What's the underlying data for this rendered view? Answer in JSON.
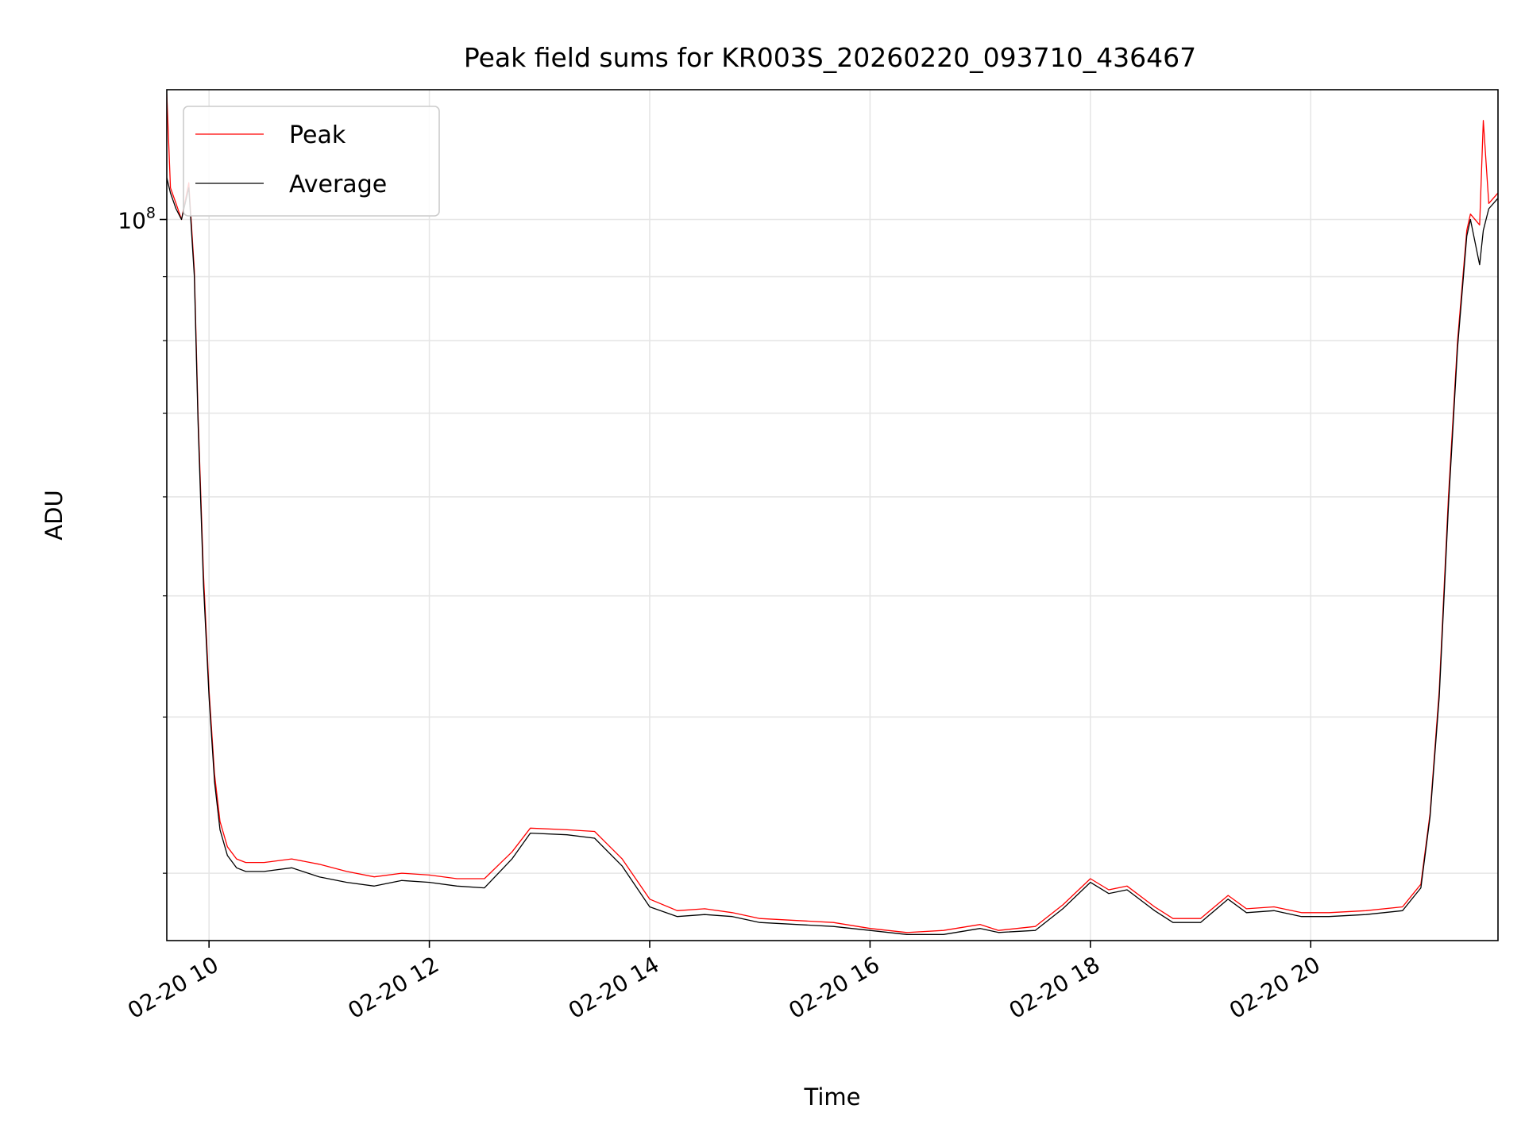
{
  "chart_data": {
    "type": "line",
    "title": "Peak field sums for KR003S_20260220_093710_436467",
    "xlabel": "Time",
    "ylabel": "ADU",
    "y_scale": "log",
    "y_tick_labels": [
      {
        "value": 100000000,
        "base": "10",
        "exp": "8"
      }
    ],
    "x_tick_labels": [
      "02-20 10",
      "02-20 12",
      "02-20 14",
      "02-20 16",
      "02-20 18",
      "02-20 20"
    ],
    "x_ticks": [
      "2026-02-20 10:00",
      "2026-02-20 12:00",
      "2026-02-20 14:00",
      "2026-02-20 16:00",
      "2026-02-20 18:00",
      "2026-02-20 20:00"
    ],
    "xlim": [
      "2026-02-20 09:37",
      "2026-02-20 21:42"
    ],
    "ylim": [
      26500000,
      127000000
    ],
    "grid": true,
    "legend_position": "top-left",
    "x": [
      "2026-02-20 09:37",
      "2026-02-20 09:39",
      "2026-02-20 09:42",
      "2026-02-20 09:45",
      "2026-02-20 09:49",
      "2026-02-20 09:52",
      "2026-02-20 09:54",
      "2026-02-20 09:57",
      "2026-02-20 10:00",
      "2026-02-20 10:03",
      "2026-02-20 10:06",
      "2026-02-20 10:10",
      "2026-02-20 10:15",
      "2026-02-20 10:20",
      "2026-02-20 10:30",
      "2026-02-20 10:45",
      "2026-02-20 11:00",
      "2026-02-20 11:15",
      "2026-02-20 11:30",
      "2026-02-20 11:45",
      "2026-02-20 12:00",
      "2026-02-20 12:15",
      "2026-02-20 12:30",
      "2026-02-20 12:45",
      "2026-02-20 12:55",
      "2026-02-20 13:15",
      "2026-02-20 13:30",
      "2026-02-20 13:45",
      "2026-02-20 14:00",
      "2026-02-20 14:15",
      "2026-02-20 14:30",
      "2026-02-20 14:45",
      "2026-02-20 15:00",
      "2026-02-20 15:20",
      "2026-02-20 15:40",
      "2026-02-20 16:00",
      "2026-02-20 16:20",
      "2026-02-20 16:40",
      "2026-02-20 17:00",
      "2026-02-20 17:10",
      "2026-02-20 17:30",
      "2026-02-20 17:45",
      "2026-02-20 18:00",
      "2026-02-20 18:10",
      "2026-02-20 18:20",
      "2026-02-20 18:35",
      "2026-02-20 18:45",
      "2026-02-20 19:00",
      "2026-02-20 19:15",
      "2026-02-20 19:25",
      "2026-02-20 19:40",
      "2026-02-20 19:55",
      "2026-02-20 20:10",
      "2026-02-20 20:30",
      "2026-02-20 20:50",
      "2026-02-20 21:00",
      "2026-02-20 21:05",
      "2026-02-20 21:10",
      "2026-02-20 21:15",
      "2026-02-20 21:20",
      "2026-02-20 21:25",
      "2026-02-20 21:27",
      "2026-02-20 21:32",
      "2026-02-20 21:34",
      "2026-02-20 21:37",
      "2026-02-20 21:42"
    ],
    "series": [
      {
        "name": "Peak",
        "color": "#ff0000",
        "values": [
          126000000,
          106000000,
          103000000,
          100000000,
          107000000,
          91000000,
          70000000,
          52000000,
          42000000,
          36000000,
          33000000,
          31500000,
          30800000,
          30600000,
          30600000,
          30800000,
          30500000,
          30100000,
          29800000,
          30000000,
          29900000,
          29700000,
          29700000,
          31200000,
          32600000,
          32500000,
          32400000,
          30800000,
          28600000,
          28000000,
          28100000,
          27900000,
          27600000,
          27500000,
          27400000,
          27100000,
          26900000,
          27000000,
          27300000,
          27000000,
          27200000,
          28300000,
          29700000,
          29100000,
          29300000,
          28200000,
          27600000,
          27600000,
          28800000,
          28100000,
          28200000,
          27900000,
          27900000,
          28000000,
          28200000,
          29400000,
          33500000,
          42000000,
          60000000,
          80000000,
          98000000,
          101000000,
          99000000,
          120000000,
          103000000,
          105000000
        ]
      },
      {
        "name": "Average",
        "color": "#000000",
        "values": [
          108000000,
          105000000,
          102000000,
          100000000,
          106000000,
          90000000,
          69000000,
          51000000,
          41500000,
          35500000,
          32500000,
          31000000,
          30300000,
          30100000,
          30100000,
          30300000,
          29800000,
          29500000,
          29300000,
          29600000,
          29500000,
          29300000,
          29200000,
          30800000,
          32300000,
          32200000,
          32000000,
          30400000,
          28200000,
          27700000,
          27800000,
          27700000,
          27400000,
          27300000,
          27200000,
          27000000,
          26800000,
          26800000,
          27100000,
          26900000,
          27000000,
          28100000,
          29500000,
          28900000,
          29100000,
          28000000,
          27400000,
          27400000,
          28600000,
          27900000,
          28000000,
          27700000,
          27700000,
          27800000,
          28000000,
          29200000,
          33300000,
          41500000,
          59000000,
          79000000,
          97000000,
          100000000,
          92000000,
          98000000,
          102000000,
          104000000
        ]
      }
    ]
  }
}
